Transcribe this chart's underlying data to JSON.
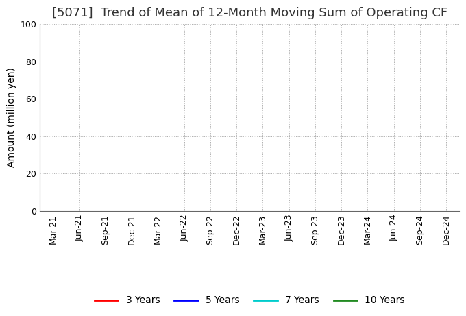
{
  "title": "[5071]  Trend of Mean of 12-Month Moving Sum of Operating CF",
  "ylabel": "Amount (million yen)",
  "ylim": [
    0,
    100
  ],
  "yticks": [
    0,
    20,
    40,
    60,
    80,
    100
  ],
  "background_color": "#ffffff",
  "plot_bg_color": "#ffffff",
  "grid_color": "#aaaaaa",
  "title_fontsize": 13,
  "title_fontweight": "normal",
  "axis_label_fontsize": 10,
  "tick_fontsize": 9,
  "legend_entries": [
    {
      "label": "3 Years",
      "color": "#ff0000",
      "lw": 2
    },
    {
      "label": "5 Years",
      "color": "#0000ff",
      "lw": 2
    },
    {
      "label": "7 Years",
      "color": "#00cccc",
      "lw": 2
    },
    {
      "label": "10 Years",
      "color": "#228b22",
      "lw": 2
    }
  ],
  "x_tick_labels": [
    "Mar-21",
    "Jun-21",
    "Sep-21",
    "Dec-21",
    "Mar-22",
    "Jun-22",
    "Sep-22",
    "Dec-22",
    "Mar-23",
    "Jun-23",
    "Sep-23",
    "Dec-23",
    "Mar-24",
    "Jun-24",
    "Sep-24",
    "Dec-24"
  ]
}
